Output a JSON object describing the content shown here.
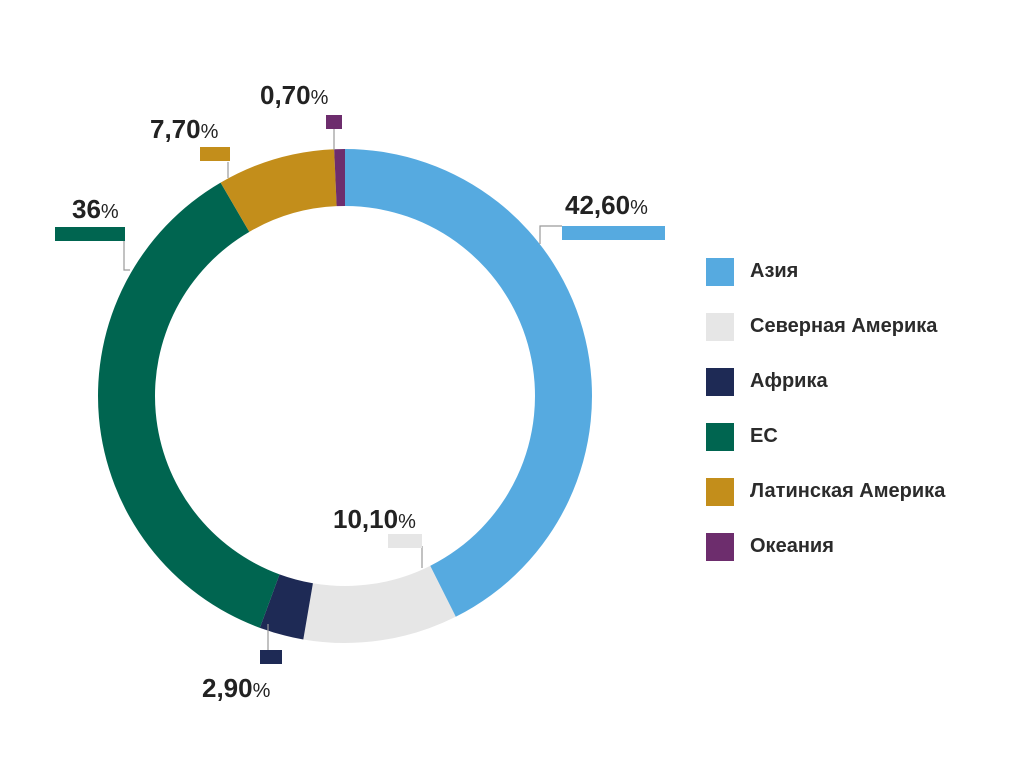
{
  "chart_data": {
    "type": "pie",
    "title": "",
    "unit": "%",
    "slices": [
      {
        "label": "Азия",
        "value": 42.6,
        "value_text": "42,60",
        "color": "#56aae0"
      },
      {
        "label": "Северная Америка",
        "value": 10.1,
        "value_text": "10,10",
        "color": "#e6e6e6"
      },
      {
        "label": "Африка",
        "value": 2.9,
        "value_text": "2,90",
        "color": "#1e2a55"
      },
      {
        "label": "ЕС",
        "value": 36.0,
        "value_text": "36",
        "color": "#006550"
      },
      {
        "label": "Латинская Америка",
        "value": 7.7,
        "value_text": "7,70",
        "color": "#c38e1b"
      },
      {
        "label": "Океания",
        "value": 0.7,
        "value_text": "0,70",
        "color": "#6d2d6d"
      }
    ],
    "legend_position": "right"
  }
}
